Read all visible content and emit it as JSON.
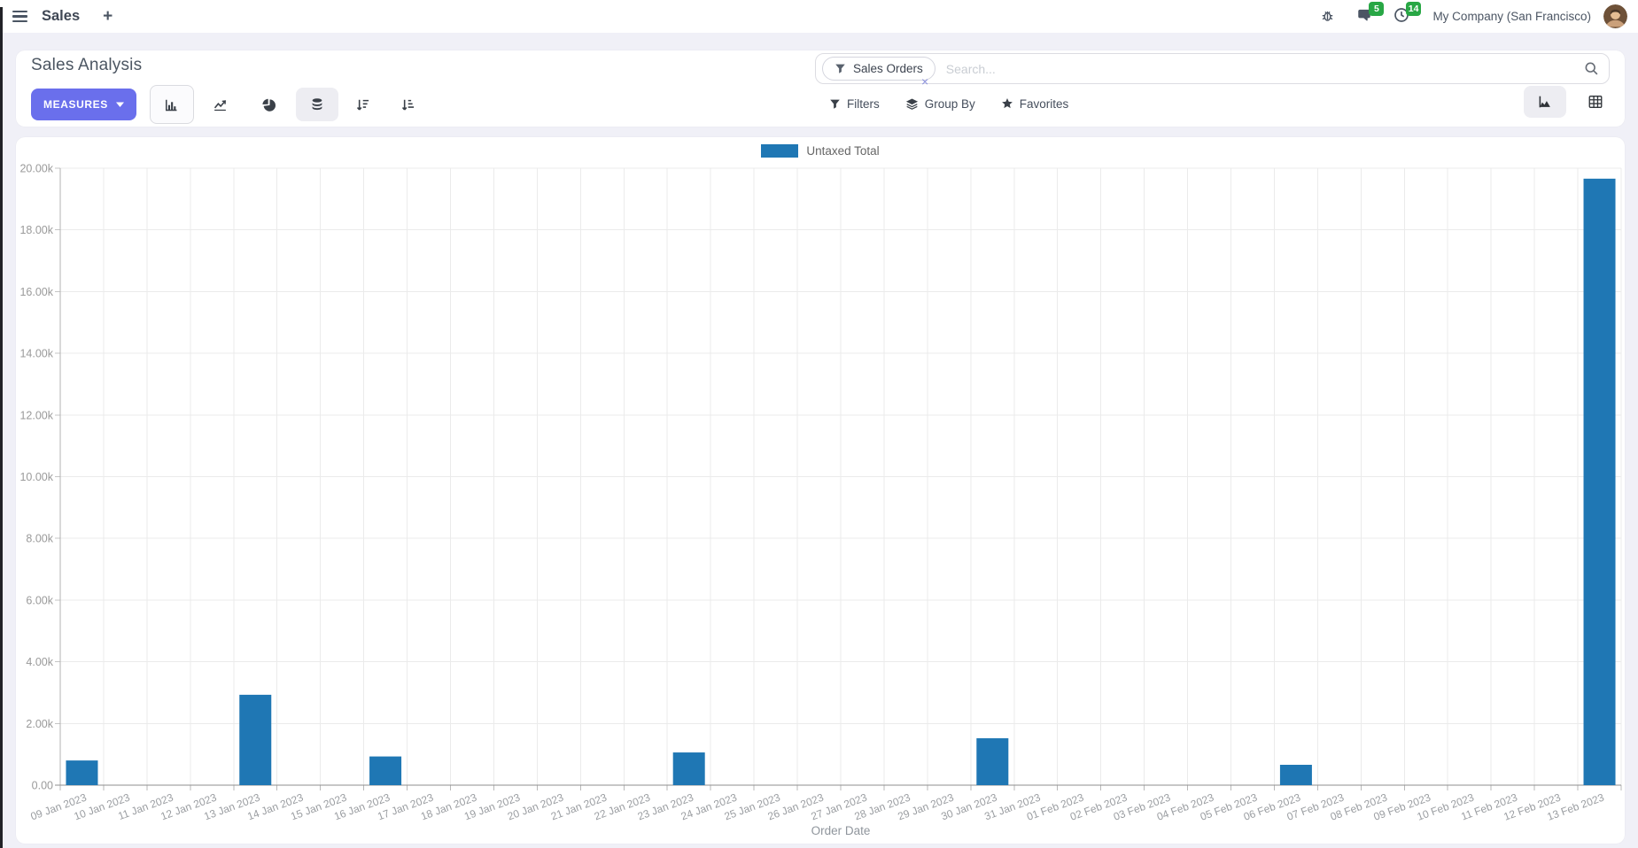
{
  "navbar": {
    "app_title": "Sales",
    "chat_badge": "5",
    "activity_badge": "14",
    "company": "My Company (San Francisco)"
  },
  "control_panel": {
    "title": "Sales Analysis",
    "measures_label": "MEASURES",
    "search": {
      "facet": "Sales Orders",
      "placeholder": "Search..."
    },
    "buttons": {
      "filters": "Filters",
      "group_by": "Group By",
      "favorites": "Favorites"
    }
  },
  "icons": {
    "plus": "+",
    "close": "×"
  },
  "colors": {
    "accent": "#6a6fec",
    "bar": "#1f77b4",
    "badge_green": "#28a745"
  },
  "chart_data": {
    "type": "bar",
    "xlabel": "Order Date",
    "ylabel": "",
    "ylim": [
      0,
      20000
    ],
    "ytick_step": 2000,
    "ytick_labels": [
      "0.00",
      "2.00k",
      "4.00k",
      "6.00k",
      "8.00k",
      "10.00k",
      "12.00k",
      "14.00k",
      "16.00k",
      "18.00k",
      "20.00k"
    ],
    "grid": true,
    "legend_position": "top",
    "categories": [
      "09 Jan 2023",
      "10 Jan 2023",
      "11 Jan 2023",
      "12 Jan 2023",
      "13 Jan 2023",
      "14 Jan 2023",
      "15 Jan 2023",
      "16 Jan 2023",
      "17 Jan 2023",
      "18 Jan 2023",
      "19 Jan 2023",
      "20 Jan 2023",
      "21 Jan 2023",
      "22 Jan 2023",
      "23 Jan 2023",
      "24 Jan 2023",
      "25 Jan 2023",
      "26 Jan 2023",
      "27 Jan 2023",
      "28 Jan 2023",
      "29 Jan 2023",
      "30 Jan 2023",
      "31 Jan 2023",
      "01 Feb 2023",
      "02 Feb 2023",
      "03 Feb 2023",
      "04 Feb 2023",
      "05 Feb 2023",
      "06 Feb 2023",
      "07 Feb 2023",
      "08 Feb 2023",
      "09 Feb 2023",
      "10 Feb 2023",
      "11 Feb 2023",
      "12 Feb 2023",
      "13 Feb 2023"
    ],
    "series": [
      {
        "name": "Untaxed Total",
        "color": "#1f77b4",
        "values": [
          800,
          0,
          0,
          0,
          2930,
          0,
          0,
          930,
          0,
          0,
          0,
          0,
          0,
          0,
          1060,
          0,
          0,
          0,
          0,
          0,
          0,
          1520,
          0,
          0,
          0,
          0,
          0,
          0,
          660,
          0,
          0,
          0,
          0,
          0,
          0,
          19660
        ]
      }
    ]
  }
}
